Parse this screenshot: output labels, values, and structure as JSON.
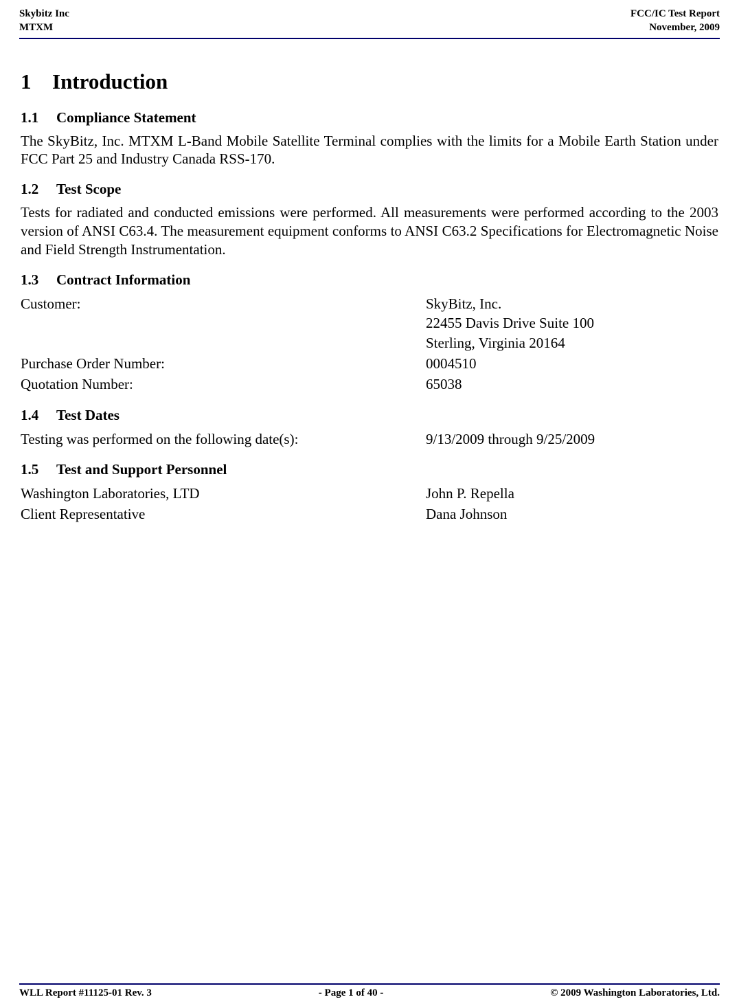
{
  "header": {
    "left_line1": "Skybitz Inc",
    "left_line2": "MTXM",
    "right_line1": "FCC/IC Test Report",
    "right_line2": "November, 2009"
  },
  "section": {
    "number": "1",
    "title": "Introduction"
  },
  "s11": {
    "number": "1.1",
    "title": "Compliance Statement",
    "body": "The SkyBitz, Inc. MTXM L-Band Mobile Satellite Terminal complies with the limits for a Mobile Earth Station under FCC Part 25 and Industry Canada RSS-170."
  },
  "s12": {
    "number": "1.2",
    "title": "Test Scope",
    "body": "Tests for radiated and conducted emissions were performed. All measurements were performed according to the 2003 version of ANSI C63.4. The measurement equipment conforms to ANSI C63.2 Specifications for Electromagnetic Noise and Field Strength Instrumentation."
  },
  "s13": {
    "number": "1.3",
    "title": "Contract Information",
    "customer_label": "Customer:",
    "customer_line1": "SkyBitz, Inc.",
    "customer_line2": "22455 Davis Drive Suite 100",
    "customer_line3": "Sterling, Virginia 20164",
    "po_label": "Purchase Order Number:",
    "po_value": "0004510",
    "quote_label": "Quotation Number:",
    "quote_value": "65038"
  },
  "s14": {
    "number": "1.4",
    "title": "Test Dates",
    "dates_label": "Testing was performed on the following date(s):",
    "dates_value": "9/13/2009 through 9/25/2009"
  },
  "s15": {
    "number": "1.5",
    "title": "Test and Support Personnel",
    "lab_label": "Washington Laboratories, LTD",
    "lab_value": "John P. Repella",
    "client_label": "Client Representative",
    "client_value": "Dana Johnson"
  },
  "footer": {
    "left": "WLL Report #11125-01 Rev. 3",
    "center": "- Page 1 of 40 -",
    "right": "© 2009 Washington Laboratories, Ltd."
  },
  "colors": {
    "rule": "#00006b",
    "text": "#000000",
    "background": "#ffffff"
  }
}
